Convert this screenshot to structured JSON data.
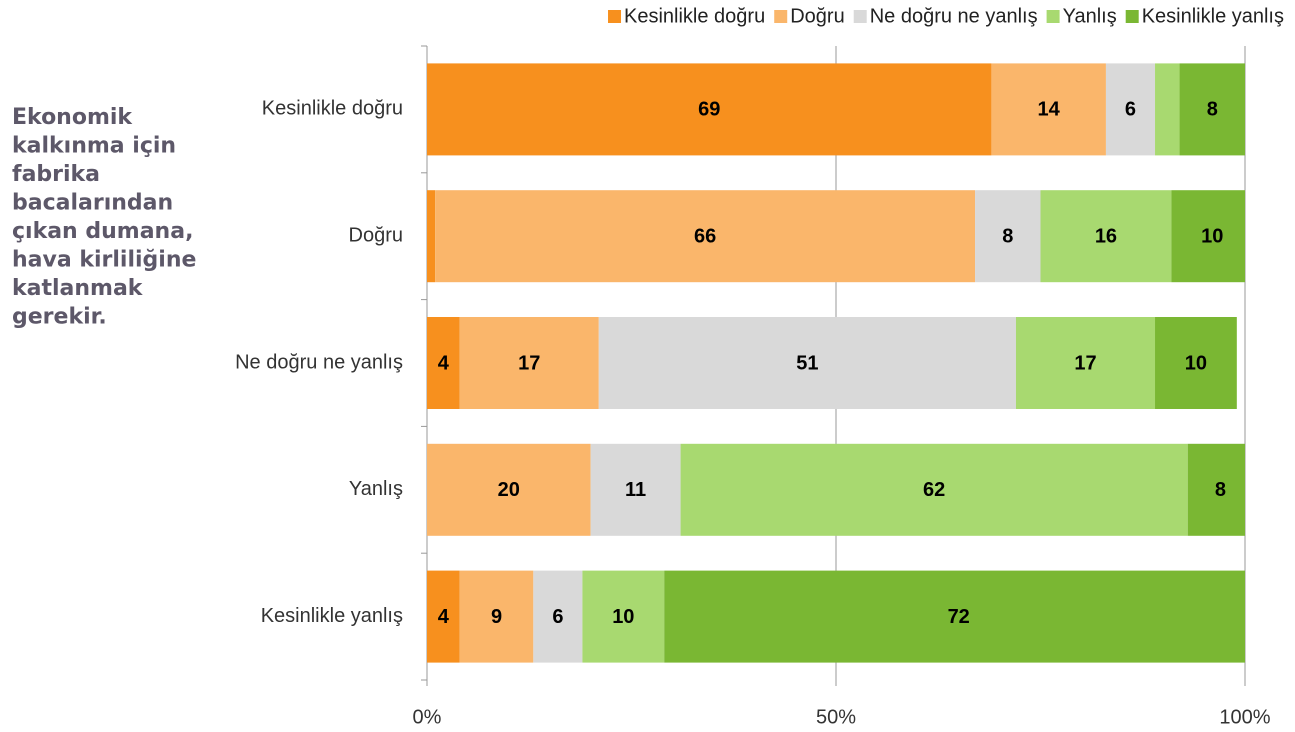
{
  "chart_data": {
    "type": "stacked_barh",
    "title_lines": [
      "Ekonomik",
      "kalkınma için",
      "fabrika",
      "bacalarından",
      "çıkan dumana,",
      "hava kirliliğine",
      "katlanmak",
      "gerekir."
    ],
    "categories": [
      "Kesinlikle doğru",
      "Doğru",
      "Ne doğru ne yanlış",
      "Yanlış",
      "Kesinlikle yanlış"
    ],
    "series": [
      {
        "name": "Kesinlikle doğru",
        "color": "#f7901e",
        "values": [
          69,
          1,
          4,
          0,
          4
        ]
      },
      {
        "name": "Doğru",
        "color": "#fab66b",
        "values": [
          14,
          66,
          17,
          20,
          9
        ]
      },
      {
        "name": "Ne doğru ne yanlış",
        "color": "#d9d9d9",
        "values": [
          6,
          8,
          51,
          11,
          6
        ]
      },
      {
        "name": "Yanlış",
        "color": "#a8d970",
        "values": [
          3,
          16,
          17,
          62,
          10
        ]
      },
      {
        "name": "Kesinlikle yanlış",
        "color": "#7ab733",
        "values": [
          8,
          10,
          10,
          8,
          72
        ]
      }
    ],
    "xlim": [
      0,
      100
    ],
    "xticks": [
      {
        "value": 0,
        "label": "0%"
      },
      {
        "value": 50,
        "label": "50%"
      },
      {
        "value": 100,
        "label": "100%"
      }
    ],
    "grid": true,
    "legend": "top"
  }
}
